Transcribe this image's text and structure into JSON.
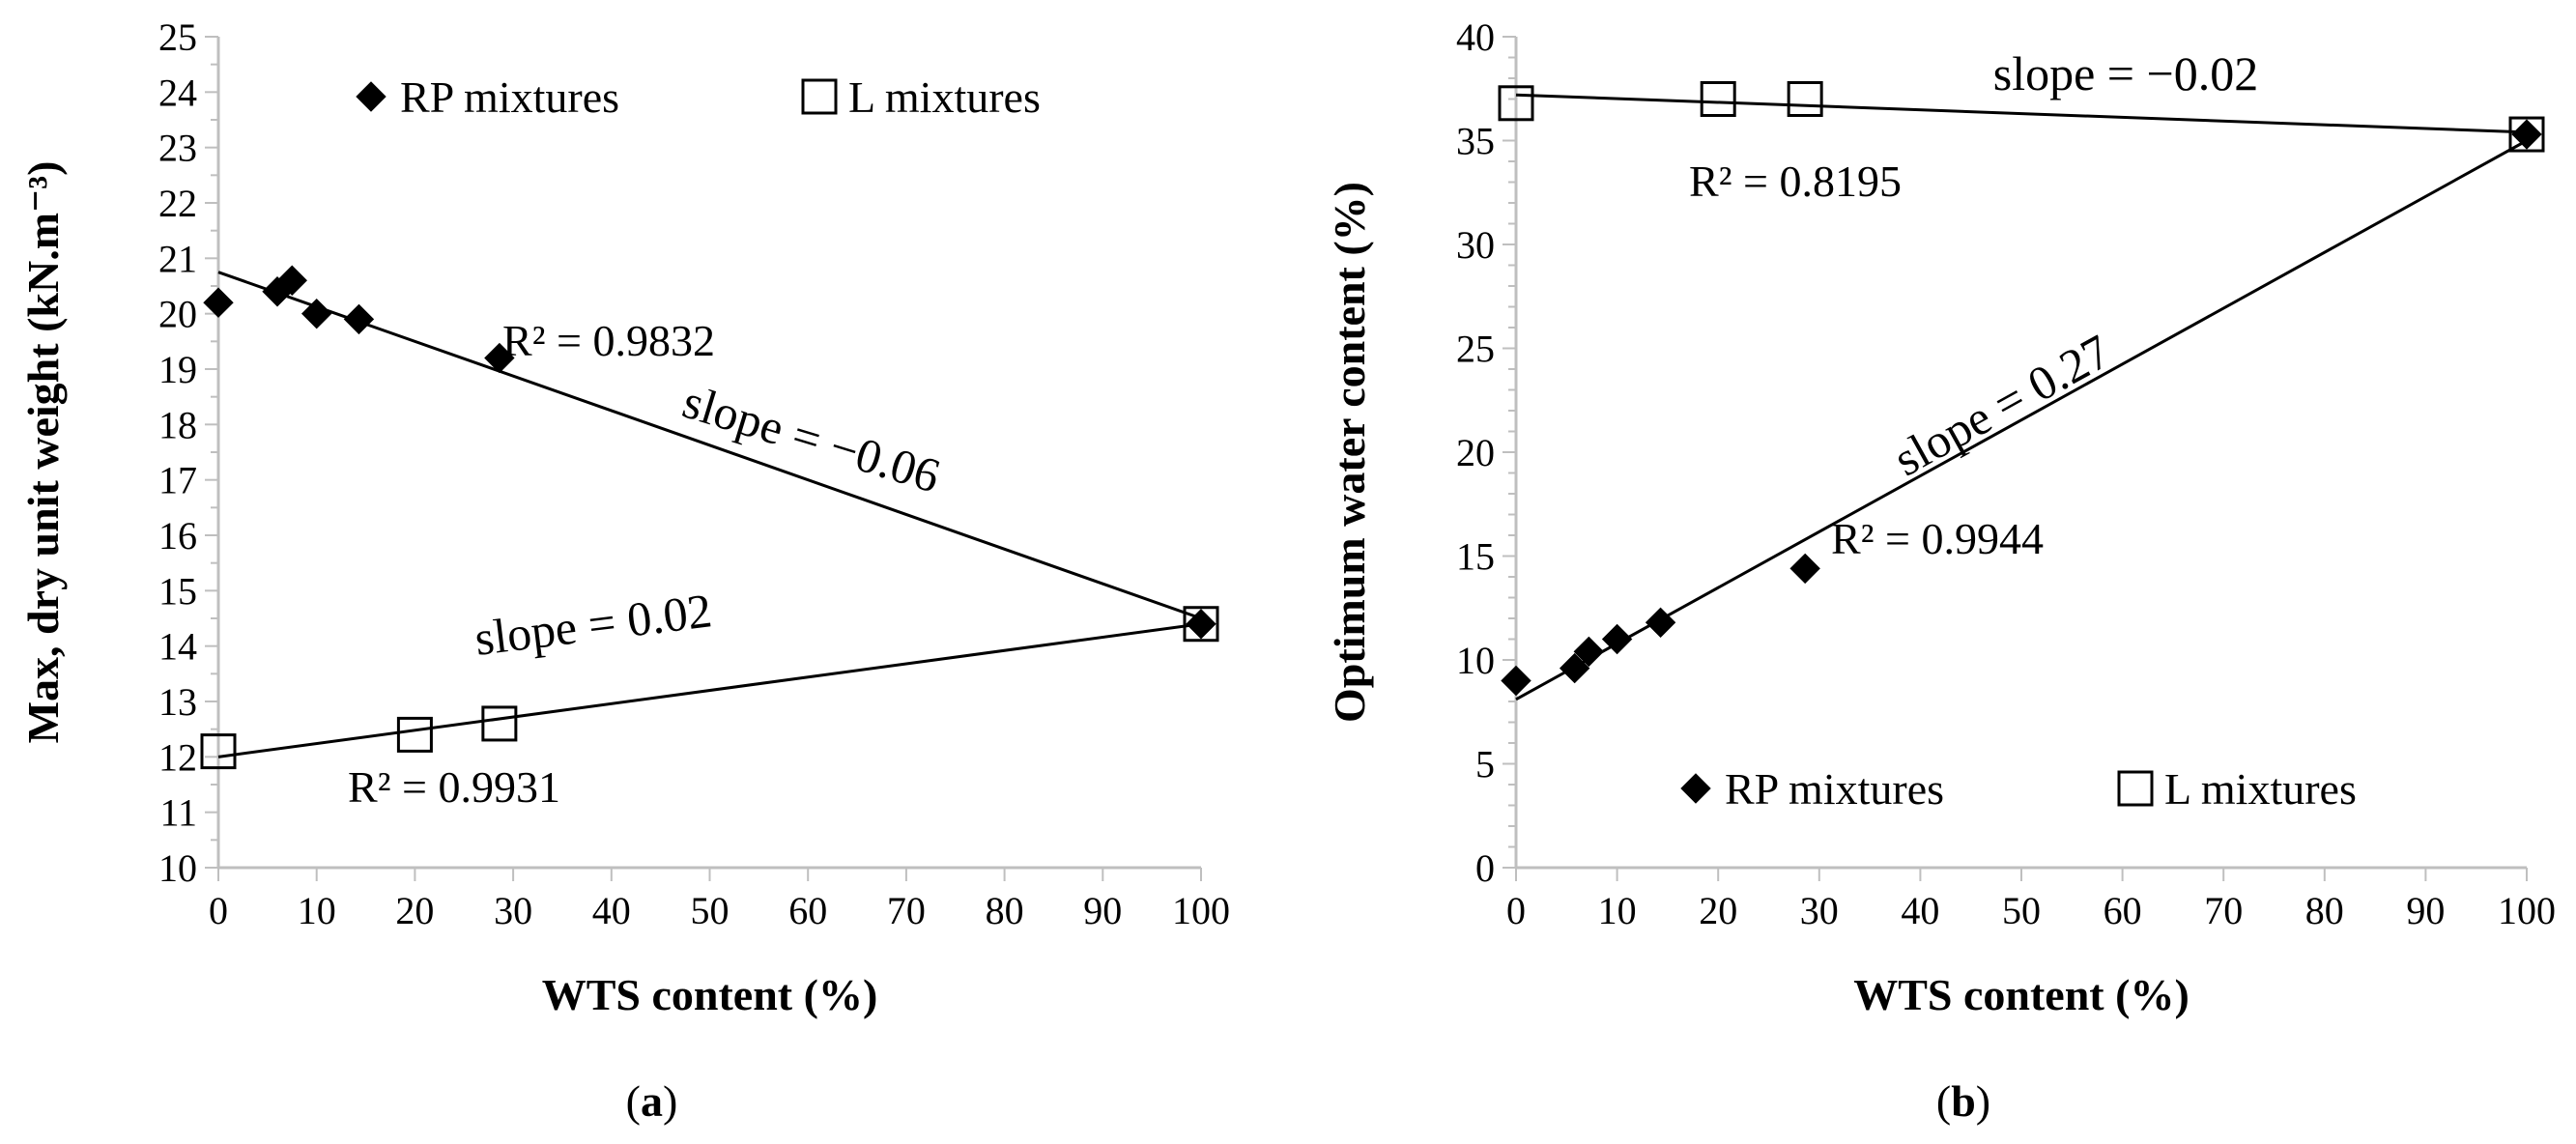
{
  "chart_data": [
    {
      "type": "scatter",
      "panel_label": "(a)",
      "panel_letter": "a",
      "xlabel": "WTS content (%)",
      "ylabel": "Max, dry unit weight (kN.m⁻³)",
      "xlim": [
        0,
        100
      ],
      "ylim": [
        10,
        25
      ],
      "xticks": [
        0,
        10,
        20,
        30,
        40,
        50,
        60,
        70,
        80,
        90,
        100
      ],
      "yticks": [
        10,
        11,
        12,
        13,
        14,
        15,
        16,
        17,
        18,
        19,
        20,
        21,
        22,
        23,
        24,
        25
      ],
      "grid": false,
      "legend": {
        "placement": "top",
        "entries": [
          {
            "label": "RP mixtures",
            "marker": "filled-diamond"
          },
          {
            "label": "L mixtures",
            "marker": "open-square"
          }
        ]
      },
      "series": [
        {
          "name": "RP mixtures",
          "marker": "filled-diamond",
          "x": [
            0,
            6,
            7.5,
            10,
            14.3,
            28.6,
            100
          ],
          "y": [
            20.2,
            20.4,
            20.6,
            20.0,
            19.9,
            19.2,
            14.4
          ]
        },
        {
          "name": "L mixtures",
          "marker": "open-square",
          "x": [
            0,
            20,
            28.6,
            100
          ],
          "y": [
            12.1,
            12.4,
            12.6,
            14.4
          ]
        }
      ],
      "trendlines": [
        {
          "series": "RP mixtures",
          "x": [
            0,
            100
          ],
          "y": [
            20.75,
            14.5
          ],
          "r2_label": "R² = 0.9832",
          "slope_label": "slope = −0.06"
        },
        {
          "series": "L mixtures",
          "x": [
            0,
            100
          ],
          "y": [
            12.0,
            14.4
          ],
          "r2_label": "R² = 0.9931",
          "slope_label": "slope = 0.02"
        }
      ]
    },
    {
      "type": "scatter",
      "panel_label": "(b)",
      "panel_letter": "b",
      "xlabel": "WTS content (%)",
      "ylabel": "Optimum  water content (%)",
      "xlim": [
        0,
        100
      ],
      "ylim": [
        0,
        40
      ],
      "xticks": [
        0,
        10,
        20,
        30,
        40,
        50,
        60,
        70,
        80,
        90,
        100
      ],
      "yticks": [
        0,
        5,
        10,
        15,
        20,
        25,
        30,
        35,
        40
      ],
      "grid": false,
      "legend": {
        "placement": "bottom",
        "entries": [
          {
            "label": "RP mixtures",
            "marker": "filled-diamond"
          },
          {
            "label": "L mixtures",
            "marker": "open-square"
          }
        ]
      },
      "series": [
        {
          "name": "RP mixtures",
          "marker": "filled-diamond",
          "x": [
            0,
            5.8,
            7.2,
            10,
            14.3,
            28.6,
            100
          ],
          "y": [
            9.0,
            9.6,
            10.4,
            11.0,
            11.8,
            14.4,
            35.3
          ]
        },
        {
          "name": "L mixtures",
          "marker": "open-square",
          "x": [
            0,
            20,
            28.6,
            100
          ],
          "y": [
            36.8,
            37.0,
            37.0,
            35.3
          ]
        }
      ],
      "trendlines": [
        {
          "series": "RP mixtures",
          "x": [
            0,
            100
          ],
          "y": [
            8.1,
            35.0
          ],
          "r2_label": "R² = 0.9944",
          "slope_label": "slope = 0.27"
        },
        {
          "series": "L mixtures",
          "x": [
            0,
            100
          ],
          "y": [
            37.2,
            35.4
          ],
          "r2_label": "R² = 0.8195",
          "slope_label": "slope = −0.02"
        }
      ]
    }
  ]
}
